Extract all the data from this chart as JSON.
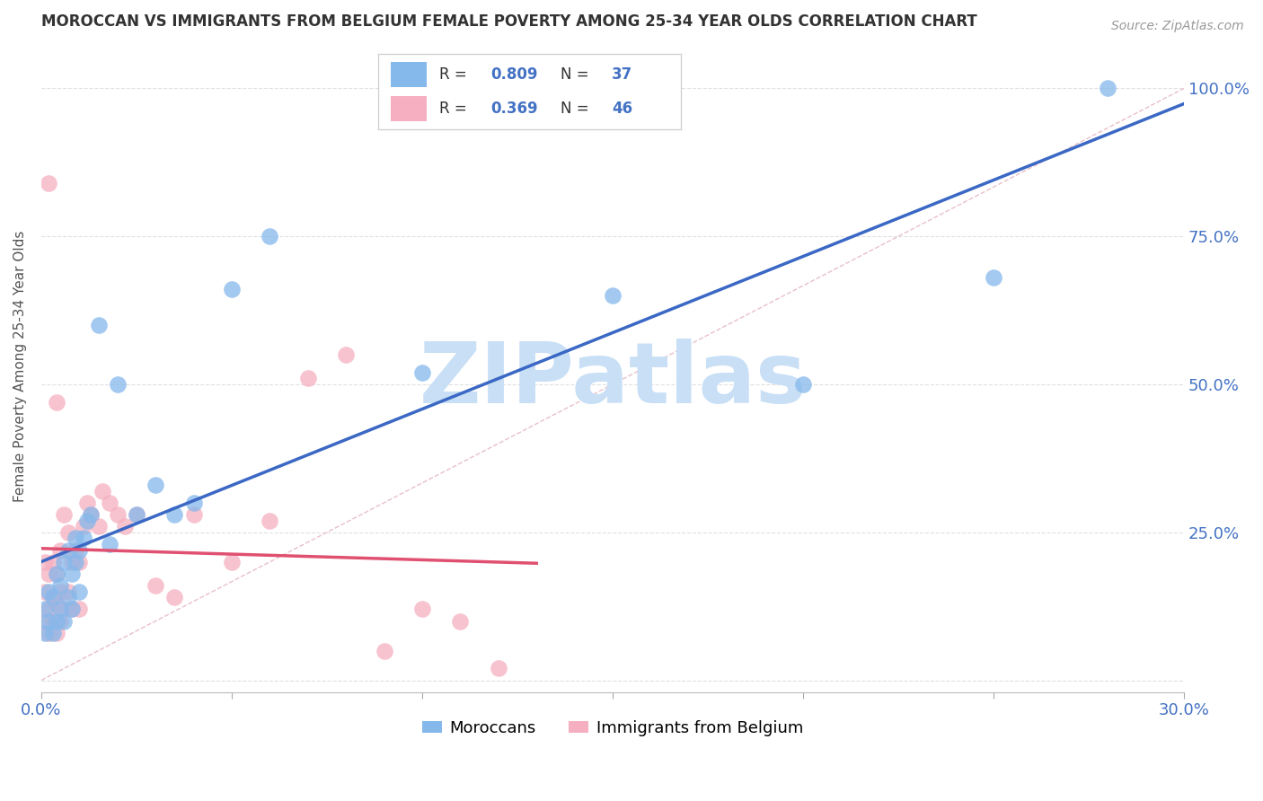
{
  "title": "MOROCCAN VS IMMIGRANTS FROM BELGIUM FEMALE POVERTY AMONG 25-34 YEAR OLDS CORRELATION CHART",
  "source": "Source: ZipAtlas.com",
  "ylabel": "Female Poverty Among 25-34 Year Olds",
  "xlim": [
    0.0,
    0.3
  ],
  "ylim": [
    -0.02,
    1.08
  ],
  "xtick_pos": [
    0.0,
    0.05,
    0.1,
    0.15,
    0.2,
    0.25,
    0.3
  ],
  "xtick_labels": [
    "0.0%",
    "",
    "",
    "",
    "",
    "",
    "30.0%"
  ],
  "ytick_pos": [
    0.0,
    0.25,
    0.5,
    0.75,
    1.0
  ],
  "ytick_labels": [
    "",
    "25.0%",
    "50.0%",
    "75.0%",
    "100.0%"
  ],
  "blue_color": "#85b8eb",
  "pink_color": "#f5afc0",
  "blue_line_color": "#3a68c4",
  "pink_line_color": "#e05070",
  "ref_line_color": "#e8c0c8",
  "watermark_color": "#c8dff5",
  "legend_label_blue": "Moroccans",
  "legend_label_pink": "Immigrants from Belgium",
  "background_color": "#ffffff",
  "grid_color": "#e0e0e0",
  "moroccans_x": [
    0.001,
    0.001,
    0.002,
    0.002,
    0.003,
    0.003,
    0.004,
    0.004,
    0.005,
    0.005,
    0.006,
    0.006,
    0.007,
    0.007,
    0.008,
    0.008,
    0.009,
    0.009,
    0.01,
    0.01,
    0.011,
    0.012,
    0.013,
    0.015,
    0.018,
    0.02,
    0.025,
    0.03,
    0.035,
    0.04,
    0.05,
    0.06,
    0.1,
    0.15,
    0.2,
    0.25,
    0.28
  ],
  "moroccans_y": [
    0.12,
    0.08,
    0.1,
    0.15,
    0.08,
    0.14,
    0.1,
    0.18,
    0.12,
    0.16,
    0.1,
    0.2,
    0.14,
    0.22,
    0.12,
    0.18,
    0.2,
    0.24,
    0.15,
    0.22,
    0.24,
    0.27,
    0.28,
    0.6,
    0.23,
    0.5,
    0.28,
    0.33,
    0.28,
    0.3,
    0.66,
    0.75,
    0.52,
    0.65,
    0.5,
    0.68,
    1.0
  ],
  "belgium_x": [
    0.001,
    0.001,
    0.001,
    0.002,
    0.002,
    0.002,
    0.003,
    0.003,
    0.003,
    0.004,
    0.004,
    0.004,
    0.005,
    0.005,
    0.005,
    0.006,
    0.006,
    0.007,
    0.007,
    0.008,
    0.008,
    0.009,
    0.01,
    0.01,
    0.011,
    0.012,
    0.013,
    0.015,
    0.016,
    0.018,
    0.02,
    0.022,
    0.025,
    0.03,
    0.035,
    0.04,
    0.05,
    0.06,
    0.07,
    0.08,
    0.09,
    0.1,
    0.11,
    0.12,
    0.002,
    0.004
  ],
  "belgium_y": [
    0.1,
    0.15,
    0.2,
    0.08,
    0.12,
    0.18,
    0.1,
    0.14,
    0.2,
    0.08,
    0.13,
    0.18,
    0.1,
    0.15,
    0.22,
    0.12,
    0.28,
    0.15,
    0.25,
    0.12,
    0.2,
    0.22,
    0.12,
    0.2,
    0.26,
    0.3,
    0.28,
    0.26,
    0.32,
    0.3,
    0.28,
    0.26,
    0.28,
    0.16,
    0.14,
    0.28,
    0.2,
    0.27,
    0.51,
    0.55,
    0.05,
    0.12,
    0.1,
    0.02,
    0.84,
    0.47
  ]
}
